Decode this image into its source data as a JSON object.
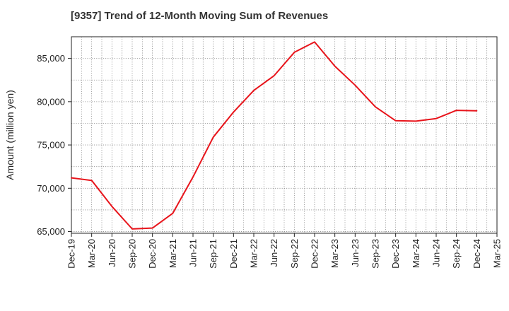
{
  "chart_data": {
    "type": "line",
    "title": "[9357]  Trend of 12-Month Moving Sum of Revenues",
    "xlabel": "",
    "ylabel": "Amount (million yen)",
    "ylim": [
      64800,
      87500
    ],
    "yticks": [
      65000,
      70000,
      75000,
      80000,
      85000
    ],
    "ytick_labels": [
      "65,000",
      "70,000",
      "75,000",
      "80,000",
      "85,000"
    ],
    "xtick_labels": [
      "Dec-19",
      "Mar-20",
      "Jun-20",
      "Sep-20",
      "Dec-20",
      "Mar-21",
      "Jun-21",
      "Sep-21",
      "Dec-21",
      "Mar-22",
      "Jun-22",
      "Sep-22",
      "Dec-22",
      "Mar-23",
      "Jun-23",
      "Sep-23",
      "Dec-23",
      "Mar-24",
      "Jun-24",
      "Sep-24",
      "Dec-24",
      "Mar-25"
    ],
    "grid": true,
    "series": [
      {
        "color": "#e8141b",
        "x": [
          "Dec-19",
          "Mar-20",
          "Jun-20",
          "Sep-20",
          "Dec-20",
          "Mar-21",
          "Jun-21",
          "Sep-21",
          "Dec-21",
          "Mar-22",
          "Jun-22",
          "Sep-22",
          "Dec-22",
          "Mar-23",
          "Jun-23",
          "Sep-23",
          "Dec-23",
          "Mar-24",
          "Jun-24",
          "Sep-24",
          "Dec-24"
        ],
        "values": [
          71200,
          70900,
          67900,
          65300,
          65400,
          67100,
          71300,
          75900,
          78800,
          81300,
          83000,
          85700,
          86900,
          84100,
          81900,
          79400,
          77800,
          77750,
          78050,
          79000,
          78950
        ]
      }
    ]
  }
}
